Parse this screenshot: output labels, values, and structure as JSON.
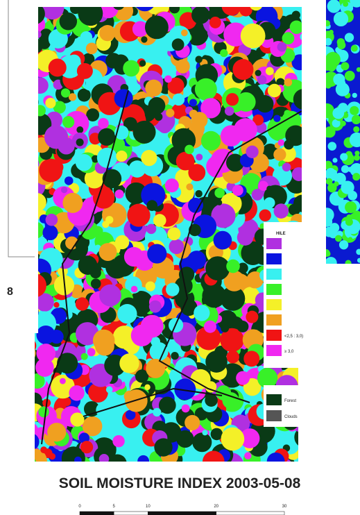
{
  "map": {
    "title": "SOIL MOISTURE INDEX 2003-05-08",
    "side_label": "8",
    "legend": {
      "heading": "HILE",
      "items": [
        {
          "label": null,
          "color": "#b030e0"
        },
        {
          "label": null,
          "color": "#0a14e0"
        },
        {
          "label": null,
          "color": "#38f0f0"
        },
        {
          "label": null,
          "color": "#38f028"
        },
        {
          "label": null,
          "color": "#f4f028"
        },
        {
          "label": null,
          "color": "#f0a020"
        },
        {
          "label": "<2,5 : 3,0)",
          "color": "#f01414"
        },
        {
          "label": "≥ 3,0",
          "color": "#f028f0"
        }
      ],
      "extra_items": [
        {
          "label": "Forest",
          "color": "#0a3a16"
        },
        {
          "label": "Clouds",
          "color": "#555555"
        }
      ]
    },
    "scale_ticks": [
      0,
      5,
      10,
      20,
      30
    ]
  }
}
